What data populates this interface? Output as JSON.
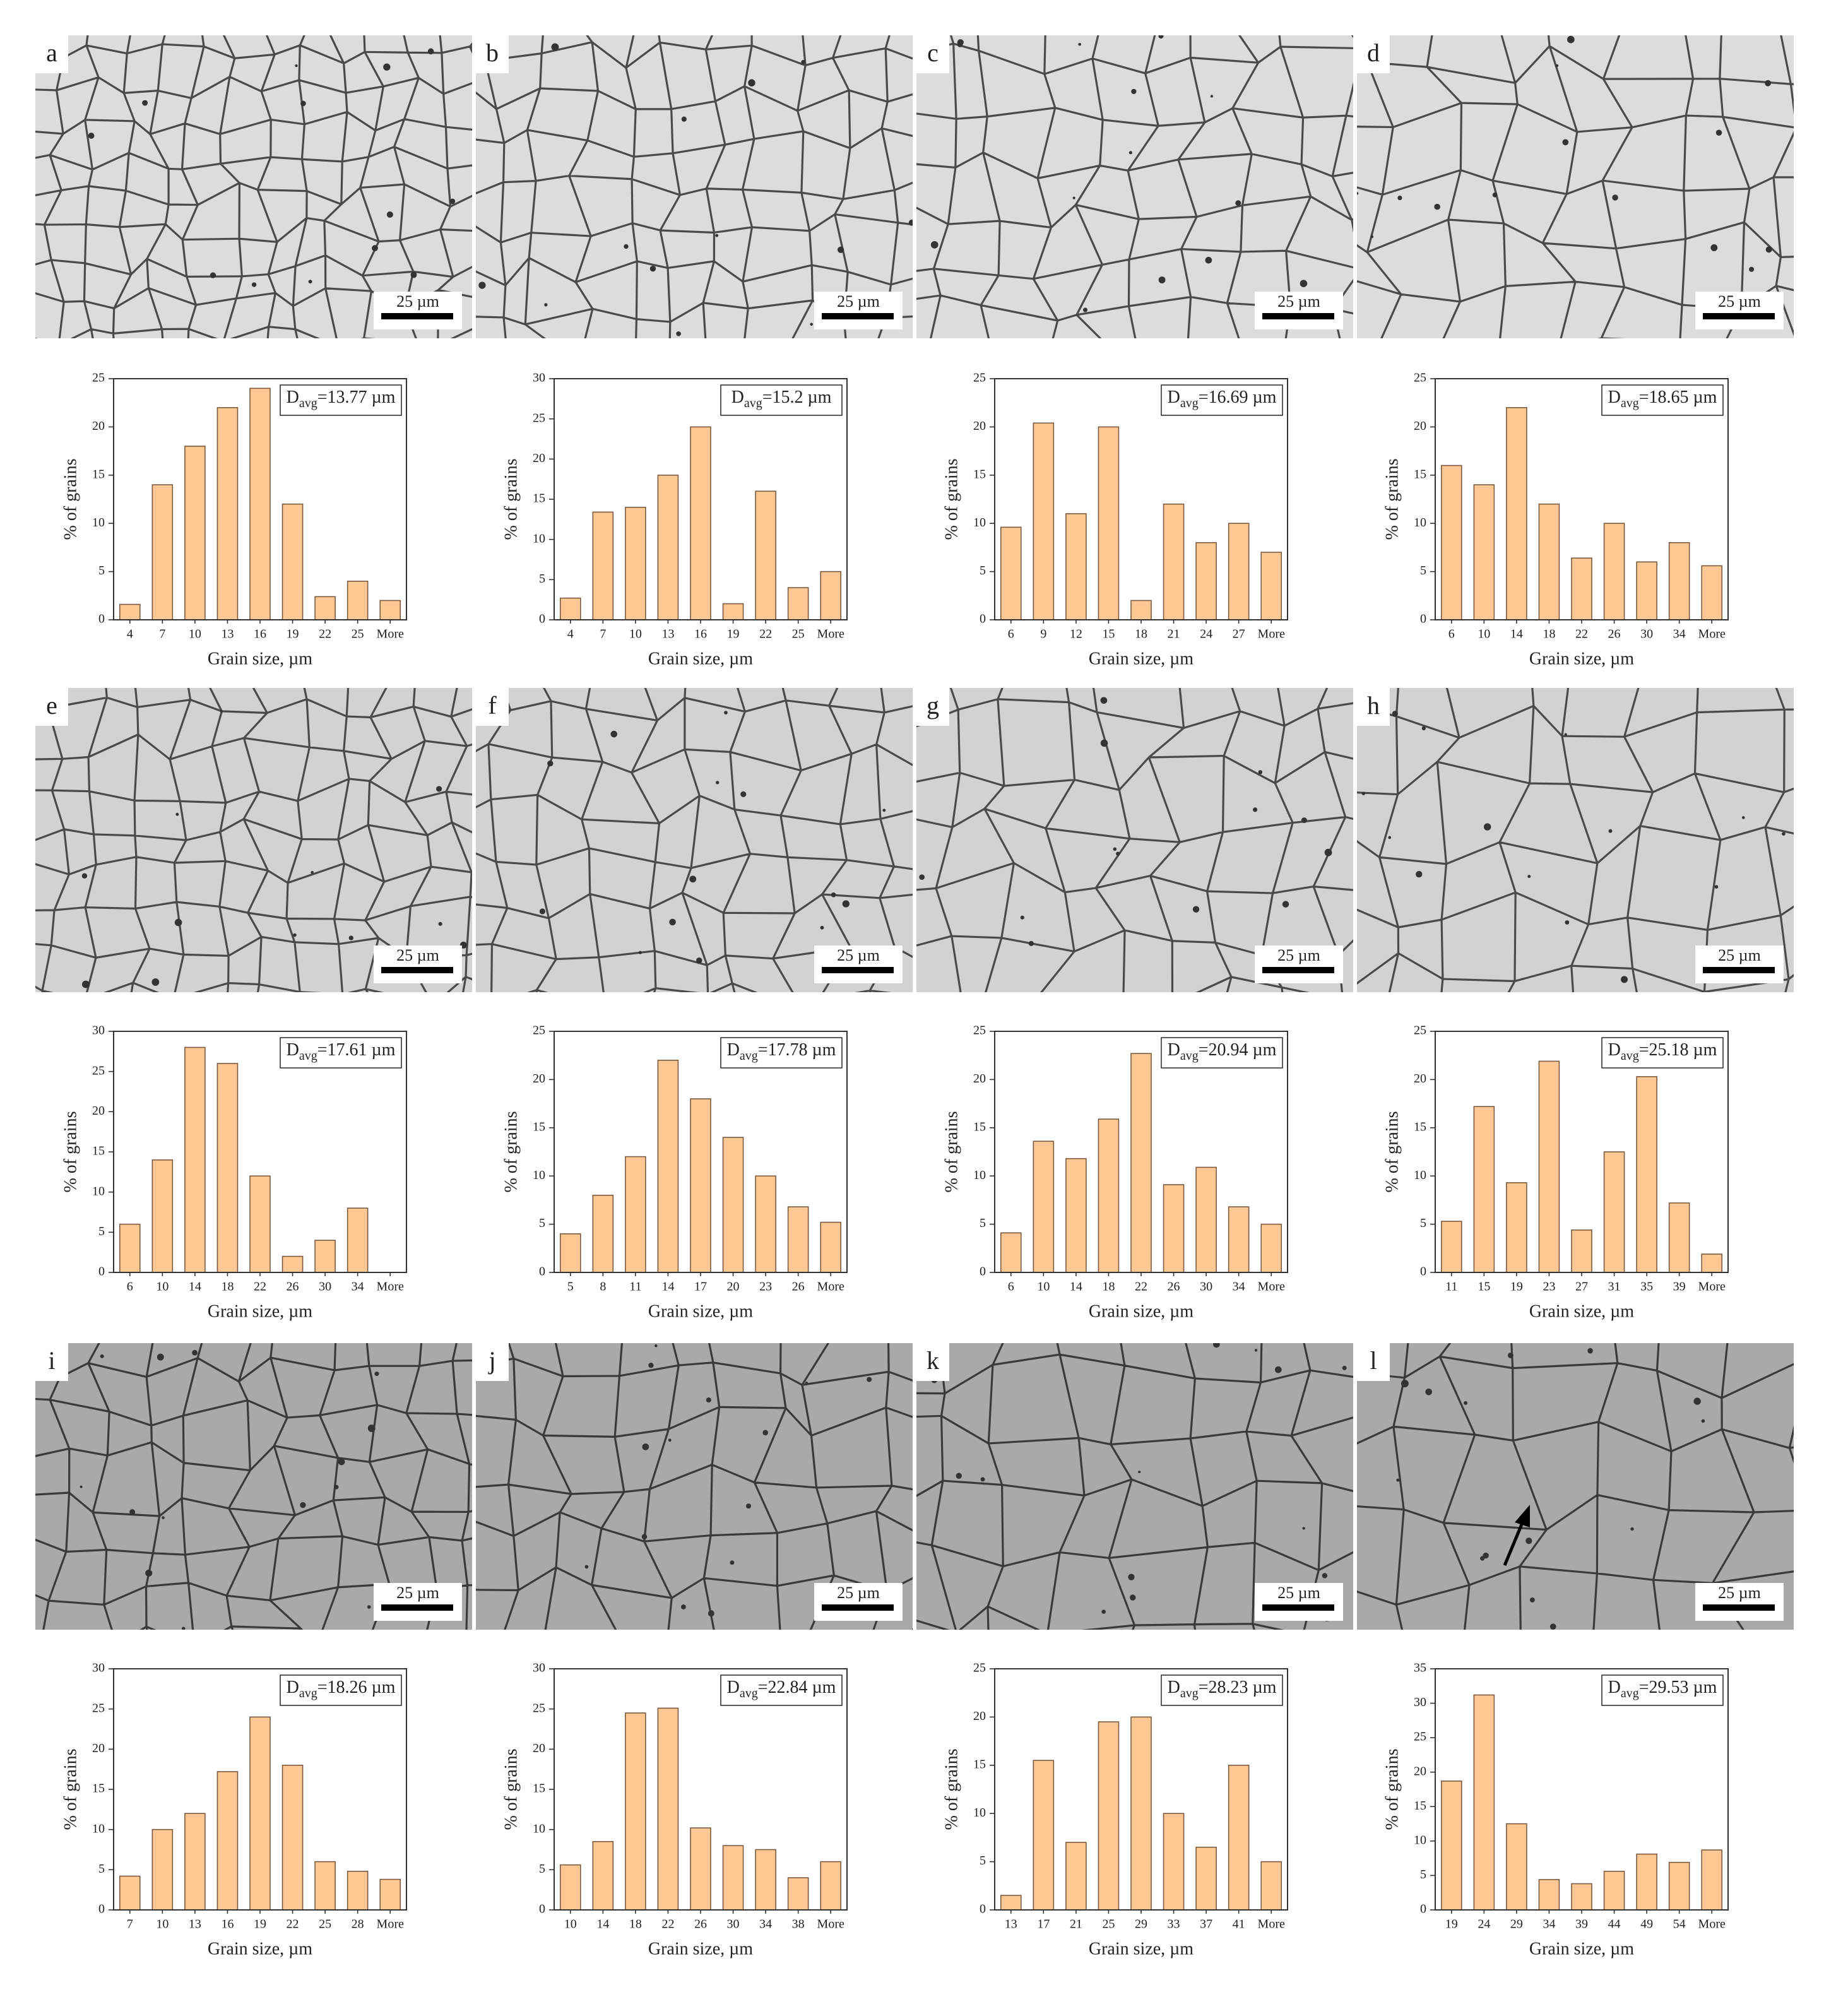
{
  "panels": [
    {
      "label": "a",
      "scale_bar": "25 µm"
    },
    {
      "label": "b",
      "scale_bar": "25 µm"
    },
    {
      "label": "c",
      "scale_bar": "25 µm"
    },
    {
      "label": "d",
      "scale_bar": "25 µm"
    },
    {
      "label": "e",
      "scale_bar": "25 µm"
    },
    {
      "label": "f",
      "scale_bar": "25 µm"
    },
    {
      "label": "g",
      "scale_bar": "25 µm"
    },
    {
      "label": "h",
      "scale_bar": "25 µm"
    },
    {
      "label": "i",
      "scale_bar": "25 µm"
    },
    {
      "label": "j",
      "scale_bar": "25 µm"
    },
    {
      "label": "k",
      "scale_bar": "25 µm"
    },
    {
      "label": "l",
      "scale_bar": "25 µm"
    }
  ],
  "chart_data": [
    {
      "type": "bar",
      "annotation_symbol": "D",
      "annotation_subscript": "avg",
      "annotation_value": "=13.77 µm",
      "x_label": "Grain size, µm",
      "y_label": "% of grains",
      "color": "#fdc894",
      "categories": [
        "4",
        "7",
        "10",
        "13",
        "16",
        "19",
        "22",
        "25",
        "More"
      ],
      "values": [
        1.6,
        14,
        18,
        22,
        24,
        12,
        2.4,
        4,
        2
      ],
      "ylim": [
        0,
        25
      ],
      "yticks": [
        0,
        5,
        10,
        15,
        20,
        25
      ]
    },
    {
      "type": "bar",
      "annotation_symbol": "D",
      "annotation_subscript": "avg",
      "annotation_value": "=15.2 µm",
      "x_label": "Grain size, µm",
      "y_label": "% of grains",
      "color": "#fdc894",
      "categories": [
        "4",
        "7",
        "10",
        "13",
        "16",
        "19",
        "22",
        "25",
        "More"
      ],
      "values": [
        2.7,
        13.4,
        14,
        18,
        24,
        2,
        16,
        4,
        6
      ],
      "ylim": [
        0,
        30
      ],
      "yticks": [
        0,
        5,
        10,
        15,
        20,
        25,
        30
      ]
    },
    {
      "type": "bar",
      "annotation_symbol": "D",
      "annotation_subscript": "avg",
      "annotation_value": "=16.69 µm",
      "x_label": "Grain size, µm",
      "y_label": "% of grains",
      "color": "#fdc894",
      "categories": [
        "6",
        "9",
        "12",
        "15",
        "18",
        "21",
        "24",
        "27",
        "More"
      ],
      "values": [
        9.6,
        20.4,
        11,
        20,
        2,
        12,
        8,
        10,
        7
      ],
      "ylim": [
        0,
        25
      ],
      "yticks": [
        0,
        5,
        10,
        15,
        20,
        25
      ]
    },
    {
      "type": "bar",
      "annotation_symbol": "D",
      "annotation_subscript": "avg",
      "annotation_value": "=18.65 µm",
      "x_label": "Grain size, µm",
      "y_label": "% of grains",
      "color": "#fdc894",
      "categories": [
        "6",
        "10",
        "14",
        "18",
        "22",
        "26",
        "30",
        "34",
        "More"
      ],
      "values": [
        16,
        14,
        22,
        12,
        6.4,
        10,
        6,
        8,
        5.6
      ],
      "ylim": [
        0,
        25
      ],
      "yticks": [
        0,
        5,
        10,
        15,
        20,
        25
      ]
    },
    {
      "type": "bar",
      "annotation_symbol": "D",
      "annotation_subscript": "avg",
      "annotation_value": "=17.61 µm",
      "x_label": "Grain size, µm",
      "y_label": "% of grains",
      "color": "#fdc894",
      "categories": [
        "6",
        "10",
        "14",
        "18",
        "22",
        "26",
        "30",
        "34",
        "More"
      ],
      "values": [
        6,
        14,
        28,
        26,
        12,
        2,
        4,
        8,
        0
      ],
      "ylim": [
        0,
        30
      ],
      "yticks": [
        0,
        5,
        10,
        15,
        20,
        25,
        30
      ]
    },
    {
      "type": "bar",
      "annotation_symbol": "D",
      "annotation_subscript": "avg",
      "annotation_value": "=17.78 µm",
      "x_label": "Grain size, µm",
      "y_label": "% of grains",
      "color": "#fdc894",
      "categories": [
        "5",
        "8",
        "11",
        "14",
        "17",
        "20",
        "23",
        "26",
        "More"
      ],
      "values": [
        4,
        8,
        12,
        22,
        18,
        14,
        10,
        6.8,
        5.2
      ],
      "ylim": [
        0,
        25
      ],
      "yticks": [
        0,
        5,
        10,
        15,
        20,
        25
      ]
    },
    {
      "type": "bar",
      "annotation_symbol": "D",
      "annotation_subscript": "avg",
      "annotation_value": "=20.94 µm",
      "x_label": "Grain size, µm",
      "y_label": "% of grains",
      "color": "#fdc894",
      "categories": [
        "6",
        "10",
        "14",
        "18",
        "22",
        "26",
        "30",
        "34",
        "More"
      ],
      "values": [
        4.1,
        13.6,
        11.8,
        15.9,
        22.7,
        9.1,
        10.9,
        6.8,
        5
      ],
      "ylim": [
        0,
        25
      ],
      "yticks": [
        0,
        5,
        10,
        15,
        20,
        25
      ]
    },
    {
      "type": "bar",
      "annotation_symbol": "D",
      "annotation_subscript": "avg",
      "annotation_value": "=25.18 µm",
      "x_label": "Grain size, µm",
      "y_label": "% of grains",
      "color": "#fdc894",
      "categories": [
        "11",
        "15",
        "19",
        "23",
        "27",
        "31",
        "35",
        "39",
        "More"
      ],
      "values": [
        5.3,
        17.2,
        9.3,
        21.9,
        4.4,
        12.5,
        20.3,
        7.2,
        1.9
      ],
      "ylim": [
        0,
        25
      ],
      "yticks": [
        0,
        5,
        10,
        15,
        20,
        25
      ]
    },
    {
      "type": "bar",
      "annotation_symbol": "D",
      "annotation_subscript": "avg",
      "annotation_value": "=18.26 µm",
      "x_label": "Grain size, µm",
      "y_label": "% of grains",
      "color": "#fdc894",
      "categories": [
        "7",
        "10",
        "13",
        "16",
        "19",
        "22",
        "25",
        "28",
        "More"
      ],
      "values": [
        4.2,
        10,
        12,
        17.2,
        24,
        18,
        6,
        4.8,
        3.8
      ],
      "ylim": [
        0,
        30
      ],
      "yticks": [
        0,
        5,
        10,
        15,
        20,
        25,
        30
      ]
    },
    {
      "type": "bar",
      "annotation_symbol": "D",
      "annotation_subscript": "avg",
      "annotation_value": "=22.84 µm",
      "x_label": "Grain size, µm",
      "y_label": "% of grains",
      "color": "#fdc894",
      "categories": [
        "10",
        "14",
        "18",
        "22",
        "26",
        "30",
        "34",
        "38",
        "More"
      ],
      "values": [
        5.6,
        8.5,
        24.5,
        25.1,
        10.2,
        8,
        7.5,
        4,
        6
      ],
      "ylim": [
        0,
        30
      ],
      "yticks": [
        0,
        5,
        10,
        15,
        20,
        25,
        30
      ]
    },
    {
      "type": "bar",
      "annotation_symbol": "D",
      "annotation_subscript": "avg",
      "annotation_value": "=28.23 µm",
      "x_label": "Grain size, µm",
      "y_label": "% of grains",
      "color": "#fdc894",
      "categories": [
        "13",
        "17",
        "21",
        "25",
        "29",
        "33",
        "37",
        "41",
        "More"
      ],
      "values": [
        1.5,
        15.5,
        7,
        19.5,
        20,
        10,
        6.5,
        15,
        5
      ],
      "ylim": [
        0,
        25
      ],
      "yticks": [
        0,
        5,
        10,
        15,
        20,
        25
      ]
    },
    {
      "type": "bar",
      "annotation_symbol": "D",
      "annotation_subscript": "avg",
      "annotation_value": "=29.53 µm",
      "x_label": "Grain size, µm",
      "y_label": "% of grains",
      "color": "#fdc894",
      "categories": [
        "19",
        "24",
        "29",
        "34",
        "39",
        "44",
        "49",
        "54",
        "More"
      ],
      "values": [
        18.7,
        31.2,
        12.5,
        4.4,
        3.8,
        5.6,
        8.1,
        6.9,
        8.7
      ],
      "ylim": [
        0,
        35
      ],
      "yticks": [
        0,
        5,
        10,
        15,
        20,
        25,
        30,
        35
      ]
    }
  ]
}
